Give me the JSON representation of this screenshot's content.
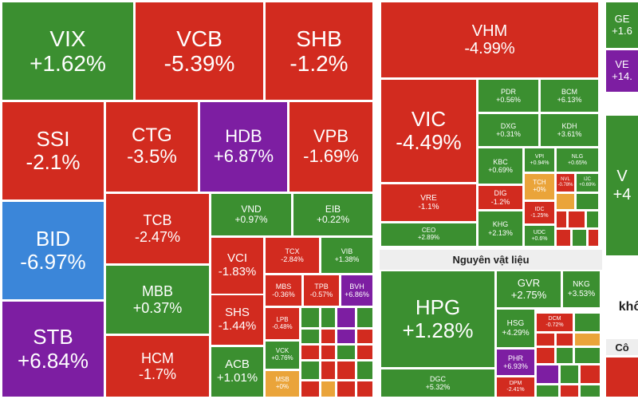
{
  "tiles": [
    {
      "ticker": "VIX",
      "change": "+1.62%"
    },
    {
      "ticker": "VCB",
      "change": "-5.39%"
    },
    {
      "ticker": "SHB",
      "change": "-1.2%"
    },
    {
      "ticker": "SSI",
      "change": "-2.1%"
    },
    {
      "ticker": "CTG",
      "change": "-3.5%"
    },
    {
      "ticker": "HDB",
      "change": "+6.87%"
    },
    {
      "ticker": "VPB",
      "change": "-1.69%"
    },
    {
      "ticker": "BID",
      "change": "-6.97%"
    },
    {
      "ticker": "STB",
      "change": "+6.84%"
    },
    {
      "ticker": "TCB",
      "change": "-2.47%"
    },
    {
      "ticker": "MBB",
      "change": "+0.37%"
    },
    {
      "ticker": "HCM",
      "change": "-1.7%"
    },
    {
      "ticker": "VND",
      "change": "+0.97%"
    },
    {
      "ticker": "EIB",
      "change": "+0.22%"
    },
    {
      "ticker": "VCI",
      "change": "-1.83%"
    },
    {
      "ticker": "SHS",
      "change": "-1.44%"
    },
    {
      "ticker": "ACB",
      "change": "+1.01%"
    },
    {
      "ticker": "TCX",
      "change": "-2.84%"
    },
    {
      "ticker": "VIB",
      "change": "+1.38%"
    },
    {
      "ticker": "MBS",
      "change": "-0.36%"
    },
    {
      "ticker": "TPB",
      "change": "-0.57%"
    },
    {
      "ticker": "BVH",
      "change": "+6.86%"
    },
    {
      "ticker": "LPB",
      "change": "-0.48%"
    },
    {
      "ticker": "VCK",
      "change": "+0.76%"
    },
    {
      "ticker": "MSB",
      "change": "+0%"
    },
    {
      "ticker": "VHM",
      "change": "-4.99%"
    },
    {
      "ticker": "VIC",
      "change": "-4.49%"
    },
    {
      "ticker": "VRE",
      "change": "-1.1%"
    },
    {
      "ticker": "CEO",
      "change": "+2.89%"
    },
    {
      "ticker": "PDR",
      "change": "+0.56%"
    },
    {
      "ticker": "BCM",
      "change": "+6.13%"
    },
    {
      "ticker": "DXG",
      "change": "+0.31%"
    },
    {
      "ticker": "KDH",
      "change": "+3.61%"
    },
    {
      "ticker": "KBC",
      "change": "+0.69%"
    },
    {
      "ticker": "VPI",
      "change": "+0.94%"
    },
    {
      "ticker": "NLG",
      "change": "+0.65%"
    },
    {
      "ticker": "TCH",
      "change": "+0%"
    },
    {
      "ticker": "NVL",
      "change": "-0.78%"
    },
    {
      "ticker": "IJC",
      "change": "+0.69%"
    },
    {
      "ticker": "DIG",
      "change": "-1.2%"
    },
    {
      "ticker": "KHG",
      "change": "+2.13%"
    },
    {
      "ticker": "IDC",
      "change": "-1.25%"
    },
    {
      "ticker": "UDC",
      "change": "+0.6%"
    },
    {
      "ticker": "HPG",
      "change": "+1.28%"
    },
    {
      "ticker": "DGC",
      "change": "+5.32%"
    },
    {
      "ticker": "GVR",
      "change": "+2.75%"
    },
    {
      "ticker": "NKG",
      "change": "+3.53%"
    },
    {
      "ticker": "HSG",
      "change": "+4.29%"
    },
    {
      "ticker": "DCM",
      "change": "-0.72%"
    },
    {
      "ticker": "PHR",
      "change": "+6.93%"
    },
    {
      "ticker": "DPM",
      "change": "-2.41%"
    },
    {
      "ticker": "GE",
      "change": "+1.6"
    },
    {
      "ticker": "VE",
      "change": "+14."
    },
    {
      "ticker": "V",
      "change": "+4"
    }
  ],
  "headers": [
    "Nguyên vật liệu",
    "Cô"
  ],
  "fragments": [
    "khô"
  ]
}
